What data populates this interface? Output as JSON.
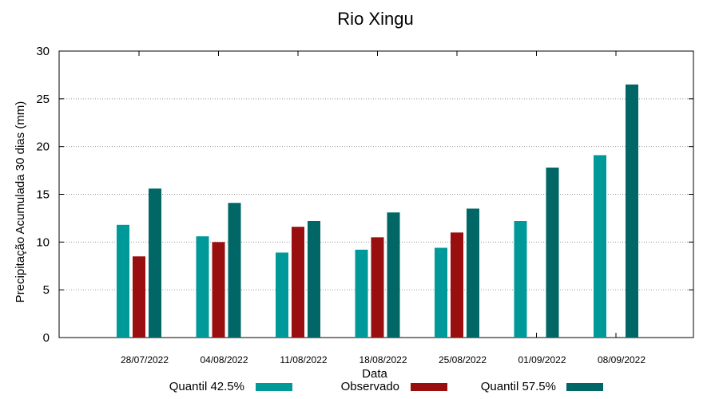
{
  "chart_data": {
    "type": "bar",
    "title": "Rio Xingu",
    "xlabel": "Data",
    "ylabel": "Precipitação Acumulada 30 dias (mm)",
    "ylim": [
      0,
      30
    ],
    "yticks": [
      0,
      5,
      10,
      15,
      20,
      25,
      30
    ],
    "grid": true,
    "legend_position": "bottom",
    "categories": [
      "28/07/2022",
      "04/08/2022",
      "11/08/2022",
      "18/08/2022",
      "25/08/2022",
      "01/09/2022",
      "08/09/2022"
    ],
    "series": [
      {
        "name": "Quantil 42.5%",
        "color": "#009999",
        "values": [
          11.8,
          10.6,
          8.9,
          9.2,
          9.4,
          12.2,
          19.1
        ]
      },
      {
        "name": "Observado",
        "color": "#990f0f",
        "values": [
          8.5,
          10.0,
          11.6,
          10.5,
          11.0,
          null,
          null
        ]
      },
      {
        "name": "Quantil 57.5%",
        "color": "#006666",
        "values": [
          15.6,
          14.1,
          12.2,
          13.1,
          13.5,
          17.8,
          26.5
        ]
      }
    ]
  }
}
